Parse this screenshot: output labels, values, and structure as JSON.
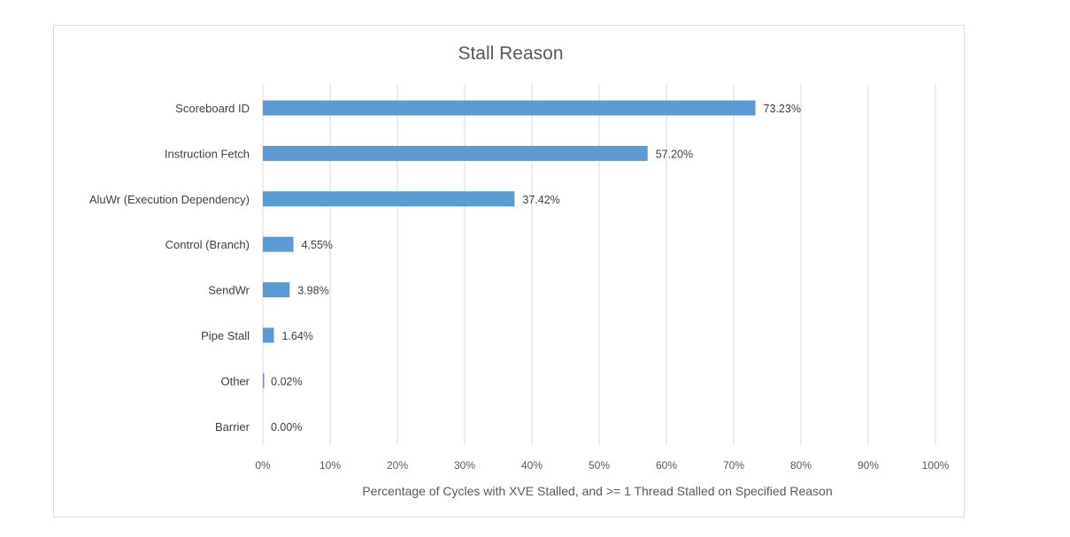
{
  "chart_data": {
    "type": "bar",
    "orientation": "horizontal",
    "title": "Stall Reason",
    "xlabel": "Percentage of Cycles with XVE Stalled, and >= 1 Thread Stalled on Specified Reason",
    "ylabel": "",
    "xlim": [
      0,
      100
    ],
    "xticks": [
      0,
      10,
      20,
      30,
      40,
      50,
      60,
      70,
      80,
      90,
      100
    ],
    "xtick_labels": [
      "0%",
      "10%",
      "20%",
      "30%",
      "40%",
      "50%",
      "60%",
      "70%",
      "80%",
      "90%",
      "100%"
    ],
    "grid": true,
    "legend": "none",
    "bar_color": "#5b9bd5",
    "categories": [
      "Scoreboard ID",
      "Instruction Fetch",
      "AluWr (Execution Dependency)",
      "Control (Branch)",
      "SendWr",
      "Pipe Stall",
      "Other",
      "Barrier"
    ],
    "values": [
      73.23,
      57.2,
      37.42,
      4.55,
      3.98,
      1.64,
      0.02,
      0.0
    ],
    "value_labels": [
      "73.23%",
      "57.20%",
      "37.42%",
      "4.55%",
      "3.98%",
      "1.64%",
      "0.02%",
      "0.00%"
    ]
  }
}
